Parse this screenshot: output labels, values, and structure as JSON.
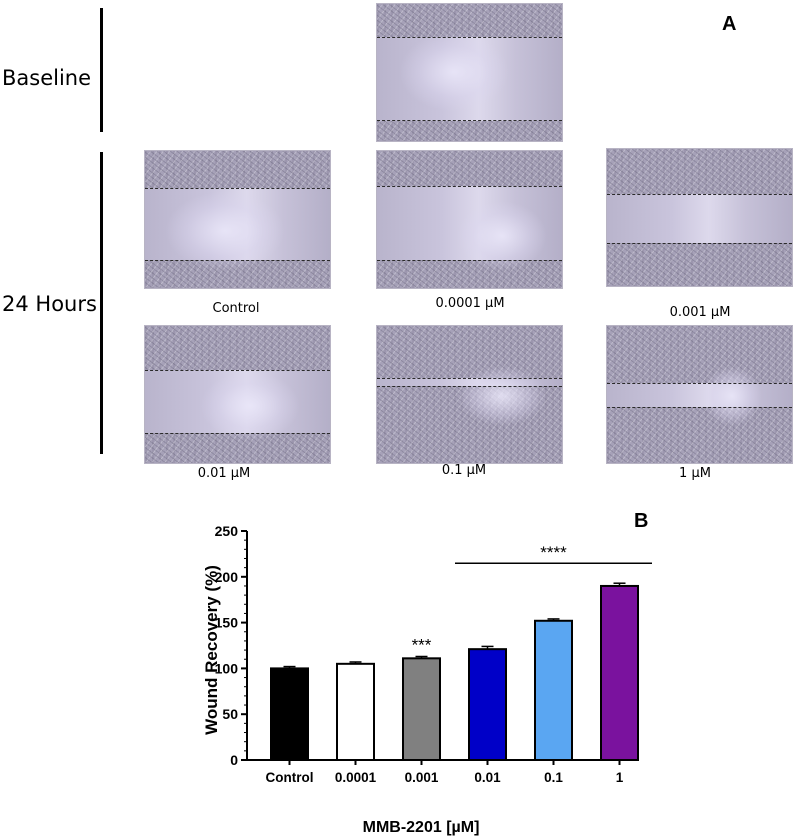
{
  "panel_a": {
    "letter": "A",
    "baseline_label": "Baseline",
    "hours_label": "24 Hours",
    "captions": [
      "Control",
      "0.0001 µM",
      "0.001 µM",
      "0.01 µM",
      "0.1 µM",
      "1 µM"
    ]
  },
  "panel_b": {
    "letter": "B"
  },
  "chart_data": {
    "type": "bar",
    "title": "",
    "xlabel": "MMB-2201 [µM]",
    "ylabel": "Wound Recovery (%)",
    "categories": [
      "Control",
      "0.0001",
      "0.001",
      "0.01",
      "0.1",
      "1"
    ],
    "values": [
      100,
      105,
      111,
      121,
      152,
      190
    ],
    "errors": [
      2,
      2,
      2,
      3,
      2,
      3
    ],
    "colors": [
      "#000000",
      "#ffffff",
      "#808080",
      "#0000c8",
      "#5aa6f2",
      "#7a129e"
    ],
    "ylim": [
      0,
      250
    ],
    "yticks": [
      0,
      50,
      100,
      150,
      200,
      250
    ],
    "annotations": [
      {
        "text": "***",
        "category_index": 2
      },
      {
        "text": "****",
        "from_index": 3,
        "to_index": 5
      }
    ],
    "grid": false,
    "legend": "none"
  }
}
